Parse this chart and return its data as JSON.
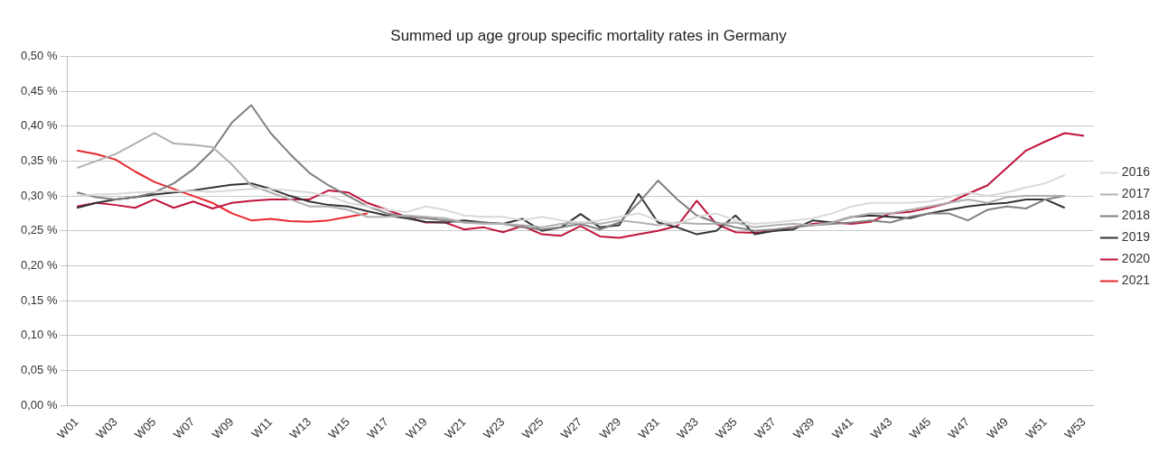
{
  "chart_data": {
    "type": "line",
    "title": "Summed up age group specific mortality rates in Germany",
    "categories": [
      "W01",
      null,
      "W03",
      null,
      "W05",
      null,
      "W07",
      null,
      "W09",
      null,
      "W11",
      null,
      "W13",
      null,
      "W15",
      null,
      "W17",
      null,
      "W19",
      null,
      "W21",
      null,
      "W23",
      null,
      "W25",
      null,
      "W27",
      null,
      "W29",
      null,
      "W31",
      null,
      "W33",
      null,
      "W35",
      null,
      "W37",
      null,
      "W39",
      null,
      "W41",
      null,
      "W43",
      null,
      "W45",
      null,
      "W47",
      null,
      "W49",
      null,
      "W51",
      null,
      "W53"
    ],
    "series": [
      {
        "name": "2016",
        "color": "#d9d9d9",
        "values": [
          0.3,
          0.302,
          0.303,
          0.305,
          0.306,
          0.307,
          0.307,
          0.306,
          0.308,
          0.31,
          0.31,
          0.308,
          0.305,
          0.3,
          0.29,
          0.285,
          0.28,
          0.277,
          0.285,
          0.28,
          0.272,
          0.27,
          0.27,
          0.265,
          0.27,
          0.265,
          0.262,
          0.265,
          0.27,
          0.275,
          0.265,
          0.26,
          0.27,
          0.275,
          0.265,
          0.26,
          0.262,
          0.265,
          0.268,
          0.275,
          0.285,
          0.29,
          0.29,
          0.29,
          0.292,
          0.298,
          0.305,
          0.3,
          0.305,
          0.312,
          0.318,
          0.33,
          null
        ]
      },
      {
        "name": "2017",
        "color": "#b0b0b0",
        "values": [
          0.34,
          0.35,
          0.36,
          0.375,
          0.39,
          0.375,
          0.373,
          0.37,
          0.345,
          0.315,
          0.305,
          0.295,
          0.285,
          0.285,
          0.28,
          0.27,
          0.27,
          0.272,
          0.27,
          0.268,
          0.262,
          0.26,
          0.26,
          0.258,
          0.255,
          0.26,
          0.262,
          0.26,
          0.265,
          0.262,
          0.258,
          0.262,
          0.26,
          0.26,
          0.262,
          0.255,
          0.258,
          0.26,
          0.258,
          0.262,
          0.27,
          0.275,
          0.275,
          0.28,
          0.285,
          0.29,
          0.295,
          0.29,
          0.298,
          0.3,
          0.3,
          0.3,
          null
        ]
      },
      {
        "name": "2018",
        "color": "#808080",
        "values": [
          0.305,
          0.298,
          0.295,
          0.298,
          0.305,
          0.318,
          0.338,
          0.365,
          0.405,
          0.43,
          0.39,
          0.36,
          0.333,
          0.315,
          0.3,
          0.285,
          0.275,
          0.27,
          0.268,
          0.265,
          0.262,
          0.262,
          0.26,
          0.255,
          0.252,
          0.255,
          0.26,
          0.252,
          0.262,
          0.29,
          0.322,
          0.295,
          0.272,
          0.262,
          0.255,
          0.25,
          0.252,
          0.255,
          0.258,
          0.26,
          0.262,
          0.265,
          0.262,
          0.27,
          0.275,
          0.275,
          0.265,
          0.28,
          0.285,
          0.282,
          0.295,
          0.3,
          null
        ]
      },
      {
        "name": "2019",
        "color": "#333333",
        "values": [
          0.283,
          0.29,
          0.295,
          0.298,
          0.302,
          0.305,
          0.308,
          0.312,
          0.316,
          0.318,
          0.31,
          0.3,
          0.292,
          0.287,
          0.285,
          0.278,
          0.272,
          0.268,
          0.263,
          0.262,
          0.265,
          0.262,
          0.26,
          0.267,
          0.25,
          0.255,
          0.274,
          0.255,
          0.258,
          0.303,
          0.262,
          0.255,
          0.245,
          0.25,
          0.272,
          0.245,
          0.25,
          0.252,
          0.265,
          0.262,
          0.27,
          0.272,
          0.27,
          0.268,
          0.275,
          0.28,
          0.285,
          0.288,
          0.29,
          0.295,
          0.295,
          0.283,
          null
        ]
      },
      {
        "name": "2020",
        "color": "#c0143c",
        "values": [
          0.285,
          0.29,
          0.287,
          0.283,
          0.295,
          0.283,
          0.292,
          0.282,
          0.29,
          0.293,
          0.295,
          0.295,
          0.295,
          0.308,
          0.305,
          0.29,
          0.28,
          0.27,
          0.262,
          0.262,
          0.252,
          0.255,
          0.248,
          0.257,
          0.245,
          0.243,
          0.257,
          0.242,
          0.24,
          0.245,
          0.25,
          0.257,
          0.293,
          0.26,
          0.248,
          0.247,
          0.25,
          0.255,
          0.26,
          0.262,
          0.26,
          0.263,
          0.275,
          0.277,
          0.283,
          0.29,
          0.303,
          0.315,
          0.34,
          0.365,
          0.378,
          0.39,
          0.386
        ]
      },
      {
        "name": "2021",
        "color": "#e8262b",
        "values": [
          0.365,
          0.36,
          0.352,
          0.335,
          0.32,
          0.31,
          0.3,
          0.29,
          0.275,
          0.265,
          0.267,
          0.264,
          0.263,
          0.265,
          0.27,
          0.275,
          null,
          null,
          null,
          null,
          null,
          null,
          null,
          null,
          null,
          null,
          null,
          null,
          null,
          null,
          null,
          null,
          null,
          null,
          null,
          null,
          null,
          null,
          null,
          null,
          null,
          null,
          null,
          null,
          null,
          null,
          null,
          null,
          null,
          null,
          null,
          null,
          null
        ]
      }
    ],
    "ylim": [
      0,
      0.5
    ],
    "yticks": [
      {
        "value": 0,
        "label": "0,00 %"
      },
      {
        "value": 0.05,
        "label": "0,05 %"
      },
      {
        "value": 0.1,
        "label": "0,10 %"
      },
      {
        "value": 0.15,
        "label": "0,15 %"
      },
      {
        "value": 0.2,
        "label": "0,20 %"
      },
      {
        "value": 0.25,
        "label": "0,25 %"
      },
      {
        "value": 0.3,
        "label": "0,30 %"
      },
      {
        "value": 0.35,
        "label": "0,35 %"
      },
      {
        "value": 0.4,
        "label": "0,40 %"
      },
      {
        "value": 0.45,
        "label": "0,45 %"
      },
      {
        "value": 0.5,
        "label": "0,50 %"
      }
    ],
    "grid": "y",
    "legend": "right",
    "marker": "none",
    "line_style": "solid"
  }
}
